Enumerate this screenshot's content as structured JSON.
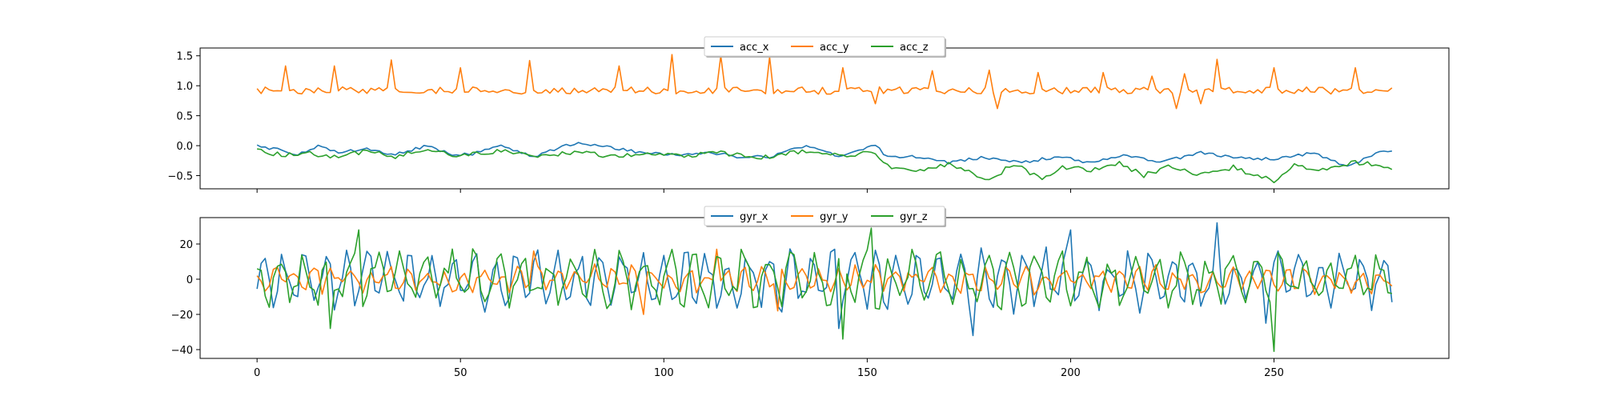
{
  "chart_data": [
    {
      "type": "line",
      "x_range": [
        0,
        279
      ],
      "xlim": [
        -14,
        293
      ],
      "ylim": [
        -0.72,
        1.63
      ],
      "y_ticks": [
        1.5,
        1.0,
        0.5,
        0.0,
        -0.5
      ],
      "y_tick_labels": [
        "1.5",
        "1.0",
        "0.5",
        "0.0",
        "−0.5"
      ],
      "x_ticks": [
        0,
        50,
        100,
        150,
        200,
        250
      ],
      "x_tick_labels": [
        "",
        "",
        "",
        "",
        "",
        ""
      ],
      "legend": {
        "placement": "upper-center",
        "columns": 3
      },
      "series": [
        {
          "name": "acc_x",
          "color": "#1f77b4",
          "keyframes": [
            [
              0,
              0.0
            ],
            [
              4,
              -0.05
            ],
            [
              10,
              -0.14
            ],
            [
              15,
              0.0
            ],
            [
              20,
              -0.12
            ],
            [
              27,
              -0.05
            ],
            [
              33,
              -0.16
            ],
            [
              42,
              0.0
            ],
            [
              48,
              -0.15
            ],
            [
              53,
              -0.14
            ],
            [
              60,
              0.0
            ],
            [
              68,
              -0.18
            ],
            [
              78,
              0.04
            ],
            [
              86,
              -0.02
            ],
            [
              95,
              -0.12
            ],
            [
              104,
              -0.16
            ],
            [
              112,
              -0.12
            ],
            [
              120,
              -0.2
            ],
            [
              126,
              -0.18
            ],
            [
              135,
              -0.0
            ],
            [
              143,
              -0.18
            ],
            [
              152,
              0.02
            ],
            [
              155,
              -0.2
            ],
            [
              162,
              -0.18
            ],
            [
              170,
              -0.28
            ],
            [
              178,
              -0.2
            ],
            [
              188,
              -0.28
            ],
            [
              197,
              -0.18
            ],
            [
              204,
              -0.28
            ],
            [
              214,
              -0.16
            ],
            [
              222,
              -0.28
            ],
            [
              232,
              -0.12
            ],
            [
              240,
              -0.2
            ],
            [
              250,
              -0.22
            ],
            [
              260,
              -0.12
            ],
            [
              268,
              -0.36
            ],
            [
              276,
              -0.1
            ],
            [
              279,
              -0.1
            ]
          ],
          "noise": 0.025
        },
        {
          "name": "acc_y",
          "color": "#ff7f0e",
          "base": 0.92,
          "noise": 0.06,
          "spikes": [
            [
              7,
              1.33
            ],
            [
              19,
              1.33
            ],
            [
              33,
              1.43
            ],
            [
              50,
              1.3
            ],
            [
              67,
              1.42
            ],
            [
              89,
              1.33
            ],
            [
              102,
              1.52
            ],
            [
              114,
              1.5
            ],
            [
              126,
              1.48
            ],
            [
              144,
              1.3
            ],
            [
              166,
              1.25
            ],
            [
              180,
              1.26
            ],
            [
              192,
              1.22
            ],
            [
              208,
              1.22
            ],
            [
              220,
              1.16
            ],
            [
              228,
              1.2
            ],
            [
              236,
              1.44
            ],
            [
              250,
              1.3
            ],
            [
              270,
              1.3
            ]
          ],
          "dips": [
            [
              152,
              0.7
            ],
            [
              182,
              0.62
            ],
            [
              226,
              0.62
            ],
            [
              232,
              0.7
            ]
          ]
        },
        {
          "name": "acc_z",
          "color": "#2ca02c",
          "keyframes": [
            [
              0,
              -0.08
            ],
            [
              6,
              -0.16
            ],
            [
              12,
              -0.12
            ],
            [
              20,
              -0.2
            ],
            [
              27,
              -0.08
            ],
            [
              34,
              -0.2
            ],
            [
              40,
              -0.08
            ],
            [
              50,
              -0.16
            ],
            [
              60,
              -0.08
            ],
            [
              68,
              -0.18
            ],
            [
              78,
              -0.1
            ],
            [
              88,
              -0.18
            ],
            [
              95,
              -0.12
            ],
            [
              105,
              -0.16
            ],
            [
              114,
              -0.12
            ],
            [
              124,
              -0.2
            ],
            [
              135,
              -0.08
            ],
            [
              146,
              -0.16
            ],
            [
              151,
              -0.08
            ],
            [
              156,
              -0.36
            ],
            [
              162,
              -0.45
            ],
            [
              170,
              -0.32
            ],
            [
              176,
              -0.46
            ],
            [
              180,
              -0.58
            ],
            [
              186,
              -0.3
            ],
            [
              193,
              -0.56
            ],
            [
              198,
              -0.35
            ],
            [
              205,
              -0.4
            ],
            [
              212,
              -0.3
            ],
            [
              218,
              -0.5
            ],
            [
              224,
              -0.34
            ],
            [
              232,
              -0.5
            ],
            [
              240,
              -0.36
            ],
            [
              250,
              -0.6
            ],
            [
              255,
              -0.32
            ],
            [
              262,
              -0.4
            ],
            [
              270,
              -0.28
            ],
            [
              279,
              -0.36
            ]
          ],
          "noise": 0.04
        }
      ]
    },
    {
      "type": "line",
      "x_range": [
        0,
        279
      ],
      "xlim": [
        -14,
        293
      ],
      "ylim": [
        -45,
        35
      ],
      "y_ticks": [
        20,
        0,
        -20,
        -40
      ],
      "y_tick_labels": [
        "20",
        "0",
        "−20",
        "−40"
      ],
      "x_ticks": [
        0,
        50,
        100,
        150,
        200,
        250
      ],
      "x_tick_labels": [
        "0",
        "50",
        "100",
        "150",
        "200",
        "250"
      ],
      "legend": {
        "placement": "upper-center",
        "columns": 3
      },
      "series": [
        {
          "name": "gyr_x",
          "color": "#1f77b4",
          "amplitude": 13,
          "period": 5.2,
          "phase": 0.0,
          "noise": 7,
          "extremes": [
            [
              236,
              32
            ],
            [
              200,
              28
            ],
            [
              248,
              -25
            ],
            [
              143,
              -28
            ],
            [
              176,
              -32
            ]
          ]
        },
        {
          "name": "gyr_y",
          "color": "#ff7f0e",
          "amplitude": 5,
          "period": 4.6,
          "phase": 1.3,
          "noise": 4,
          "extremes": [
            [
              113,
              17
            ],
            [
              68,
              16
            ],
            [
              128,
              -18
            ],
            [
              95,
              -20
            ]
          ]
        },
        {
          "name": "gyr_z",
          "color": "#2ca02c",
          "amplitude": 12,
          "period": 6.0,
          "phase": 2.1,
          "noise": 7,
          "extremes": [
            [
              25,
              28
            ],
            [
              151,
              29
            ],
            [
              144,
              -34
            ],
            [
              250,
              -41
            ],
            [
              18,
              -28
            ]
          ]
        }
      ]
    }
  ]
}
